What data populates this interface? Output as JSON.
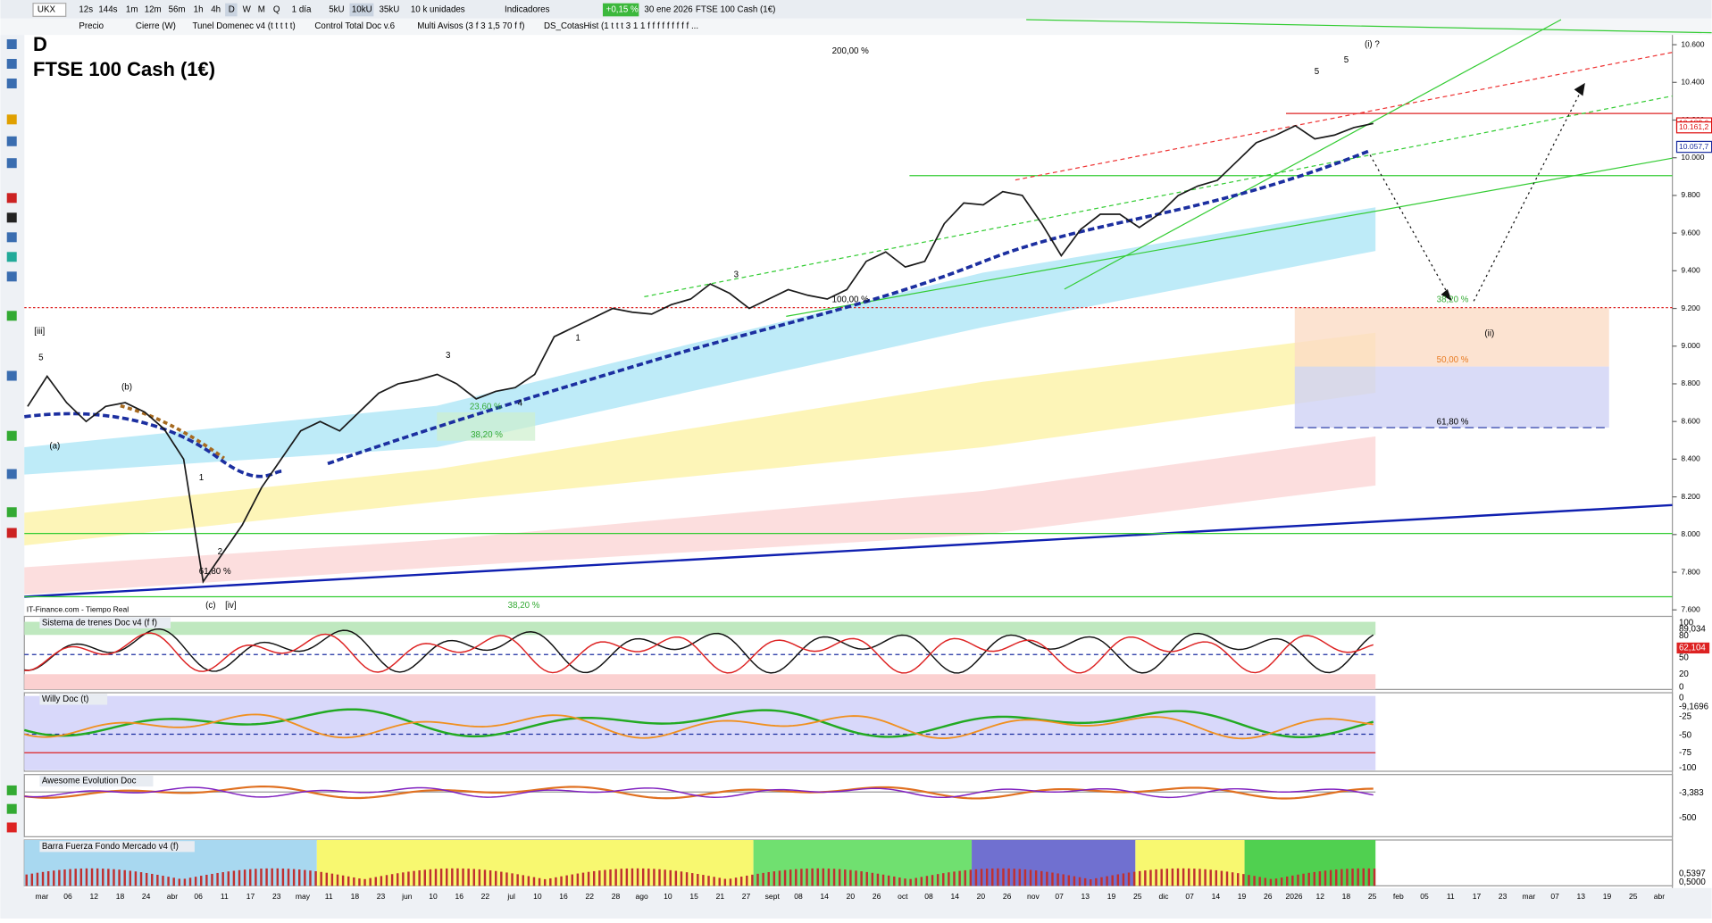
{
  "toolbar": {
    "symbol": "UKX",
    "intervals": [
      "12s",
      "144s",
      "1m",
      "12m",
      "56m",
      "1h",
      "4h",
      "D",
      "W",
      "M",
      "Q"
    ],
    "period": "1 día",
    "units": [
      "5kU",
      "10kU",
      "35kU"
    ],
    "unit_select": "10 k unidades",
    "indicators_button": "Indicadores",
    "change": "+0,15 %",
    "date": "30 ene 2026",
    "instrument": "FTSE 100 Cash (1€)"
  },
  "studies": [
    "Precio",
    "Cierre (W)",
    "Tunel Domenec v4 (t t t t t)",
    "Control Total Doc v.6",
    "Multi Avisos (3 f 3 1,5 70 f f)",
    "DS_CotasHist (1 t t t 3 1 1 f f f f f f f f f ..."
  ],
  "chart_data": {
    "type": "line",
    "timeframe": "D",
    "title": "FTSE 100 Cash (1€)",
    "color": "#1a1a1a",
    "values": [
      8680,
      8840,
      8700,
      8600,
      8680,
      8700,
      8650,
      8560,
      8400,
      7750,
      7900,
      8050,
      8250,
      8400,
      8550,
      8600,
      8550,
      8650,
      8750,
      8800,
      8820,
      8850,
      8800,
      8720,
      8760,
      8780,
      8850,
      9050,
      9100,
      9150,
      9200,
      9180,
      9170,
      9220,
      9250,
      9330,
      9280,
      9200,
      9250,
      9300,
      9270,
      9250,
      9300,
      9450,
      9500,
      9420,
      9450,
      9650,
      9760,
      9750,
      9820,
      9800,
      9650,
      9480,
      9620,
      9700,
      9700,
      9630,
      9700,
      9800,
      9850,
      9880,
      9980,
      10080,
      10120,
      10170,
      10100,
      10120,
      10160,
      10182
    ],
    "ylim": [
      7583,
      10652
    ],
    "yticks": [
      {
        "value": 10600,
        "label": "10.600"
      },
      {
        "value": 10400,
        "label": "10.400"
      },
      {
        "value": 10200,
        "label": "10.200"
      },
      {
        "value": 10000,
        "label": "10.000"
      },
      {
        "value": 9800,
        "label": "9.800"
      },
      {
        "value": 9600,
        "label": "9.600"
      },
      {
        "value": 9400,
        "label": "9.400"
      },
      {
        "value": 9200,
        "label": "9.200"
      },
      {
        "value": 9000,
        "label": "9.000"
      },
      {
        "value": 8800,
        "label": "8.800"
      },
      {
        "value": 8600,
        "label": "8.600"
      },
      {
        "value": 8400,
        "label": "8.400"
      },
      {
        "value": 8200,
        "label": "8.200"
      },
      {
        "value": 8000,
        "label": "8.000"
      },
      {
        "value": 7800,
        "label": "7.800"
      },
      {
        "value": 7600,
        "label": "7.600"
      }
    ],
    "price_labels": [
      {
        "value": 10182.6,
        "label": "10.182,6",
        "color": "#d11"
      },
      {
        "value": 10161.2,
        "label": "10.161,2",
        "color": "#d11"
      },
      {
        "value": 10057.7,
        "label": "10.057,7",
        "color": "#1c2fa0"
      }
    ],
    "x_labels": [
      "mar",
      "06",
      "12",
      "18",
      "24",
      "abr",
      "06",
      "11",
      "17",
      "23",
      "may",
      "11",
      "18",
      "23",
      "jun",
      "10",
      "16",
      "22",
      "jul",
      "10",
      "16",
      "22",
      "28",
      "ago",
      "10",
      "15",
      "21",
      "27",
      "sept",
      "08",
      "14",
      "20",
      "26",
      "oct",
      "08",
      "14",
      "20",
      "26",
      "nov",
      "07",
      "13",
      "19",
      "25",
      "dic",
      "07",
      "14",
      "19",
      "26",
      "2026",
      "12",
      "18",
      "25",
      "feb",
      "05",
      "11",
      "17",
      "23",
      "mar",
      "07",
      "13",
      "19",
      "25",
      "abr"
    ],
    "annotations": [
      "200,00 %",
      "(i) ?",
      "5",
      "5",
      "3",
      "1",
      "100,00 %",
      "[iii]",
      "5",
      "(b)",
      "(a)",
      "1",
      "2",
      "3",
      "4",
      "23,60 %",
      "38,20 %",
      "61,80 %",
      "(c)",
      "[iv]",
      "38,20 %",
      "(ii)",
      "50,00 %",
      "61,80 %",
      "38,20 %"
    ],
    "source": "IT-Finance.com - Tiempo Real"
  },
  "panels": [
    {
      "title": "Sistema de trenes Doc v4 (f f)",
      "scale_labels": [
        "100",
        "89,034",
        "80",
        "62,104",
        "50",
        "20",
        "0"
      ]
    },
    {
      "title": "Willy Doc (t)",
      "scale_labels": [
        "0",
        "-9,1696",
        "-25",
        "-50",
        "-75",
        "-100"
      ]
    },
    {
      "title": "Awesome Evolution Doc",
      "scale_labels": [
        "-3,383",
        "-500"
      ]
    },
    {
      "title": "Barra Fuerza Fondo Mercado v4 (f)",
      "scale_labels": [
        "0,5397",
        "0,5000"
      ]
    }
  ]
}
